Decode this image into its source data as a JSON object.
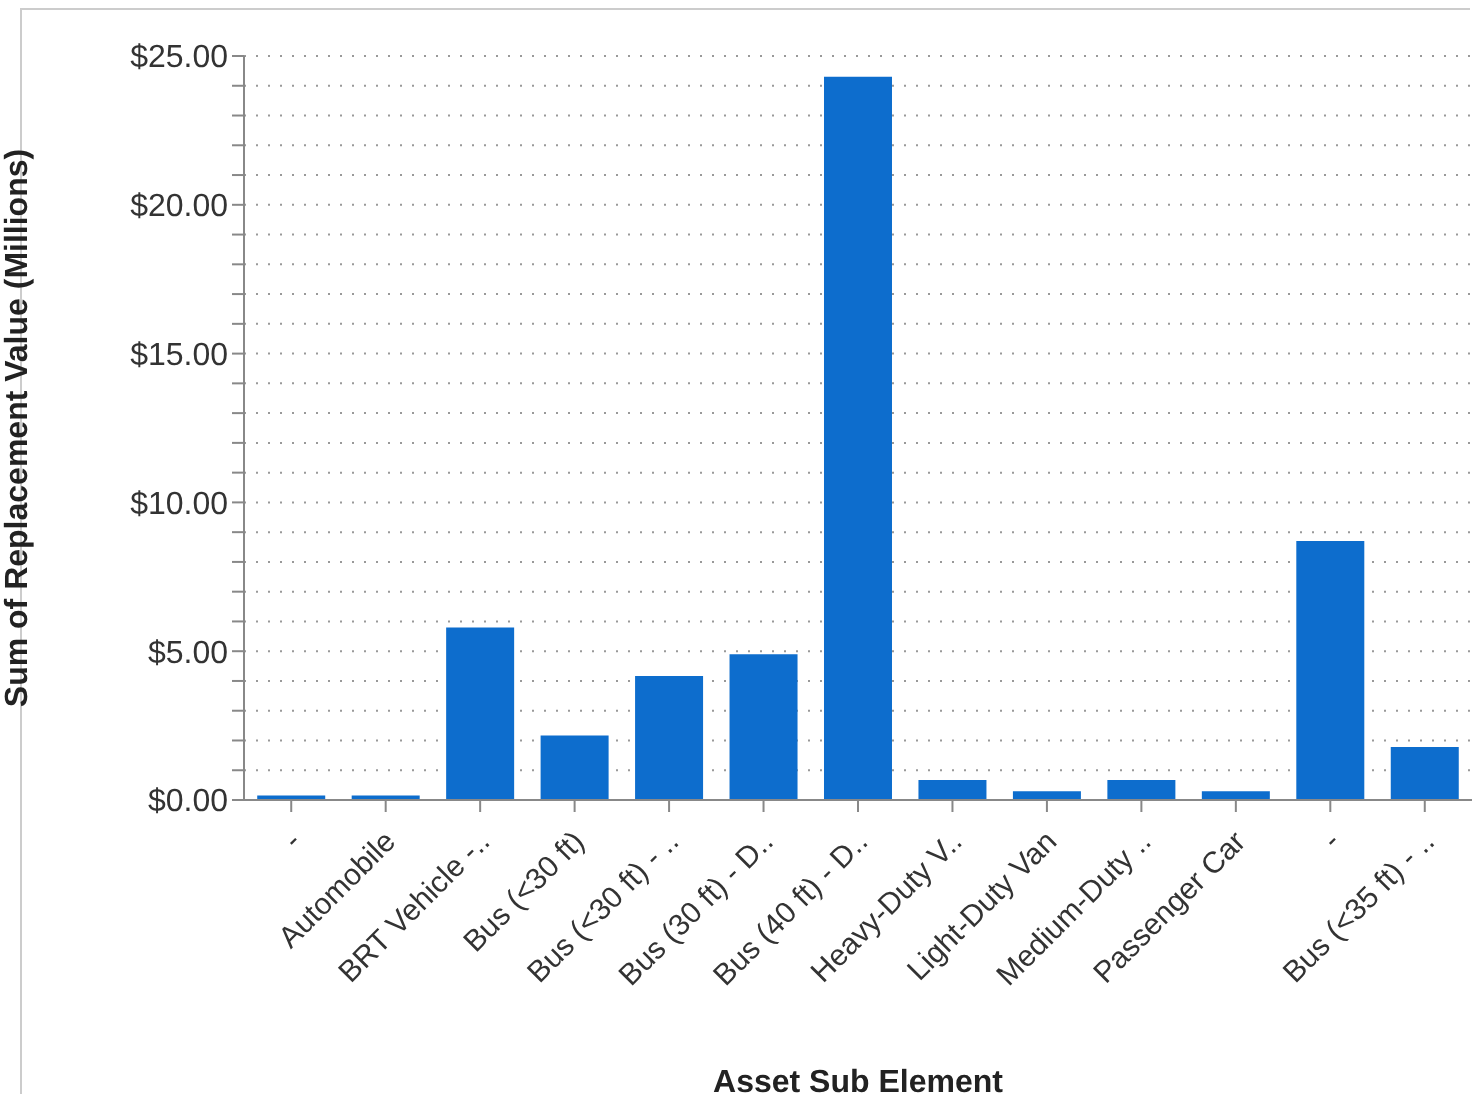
{
  "chart_data": {
    "type": "bar",
    "xlabel": "Asset Sub Element",
    "ylabel": "Sum of Replacement Value (Millions)",
    "categories": [
      "-",
      "Automobile",
      "BRT Vehicle -..",
      "Bus (<30 ft)",
      "Bus (<30 ft) - ..",
      "Bus (30 ft) - D..",
      "Bus (40 ft) - D..",
      "Heavy-Duty V..",
      "Light-Duty Van",
      "Medium-Duty ..",
      "Passenger Car",
      "-",
      "Bus (<35 ft) - .."
    ],
    "values": [
      0.15,
      0.15,
      5.8,
      2.17,
      4.17,
      4.9,
      24.3,
      0.67,
      0.29,
      0.67,
      0.29,
      8.7,
      1.78
    ],
    "color": "#0d6dcd",
    "ylim": [
      0,
      25
    ],
    "yticks": [
      {
        "value": 0,
        "label": "$0.00"
      },
      {
        "value": 1,
        "label": null
      },
      {
        "value": 2,
        "label": null
      },
      {
        "value": 3,
        "label": null
      },
      {
        "value": 4,
        "label": null
      },
      {
        "value": 5,
        "label": "$5.00"
      },
      {
        "value": 6,
        "label": null
      },
      {
        "value": 7,
        "label": null
      },
      {
        "value": 8,
        "label": null
      },
      {
        "value": 9,
        "label": null
      },
      {
        "value": 10,
        "label": "$10.00"
      },
      {
        "value": 11,
        "label": null
      },
      {
        "value": 12,
        "label": null
      },
      {
        "value": 13,
        "label": null
      },
      {
        "value": 14,
        "label": null
      },
      {
        "value": 15,
        "label": "$15.00"
      },
      {
        "value": 16,
        "label": null
      },
      {
        "value": 17,
        "label": null
      },
      {
        "value": 18,
        "label": null
      },
      {
        "value": 19,
        "label": null
      },
      {
        "value": 20,
        "label": "$20.00"
      },
      {
        "value": 21,
        "label": null
      },
      {
        "value": 22,
        "label": null
      },
      {
        "value": 23,
        "label": null
      },
      {
        "value": 24,
        "label": null
      },
      {
        "value": 25,
        "label": "$25.00"
      }
    ],
    "grid": "y"
  }
}
